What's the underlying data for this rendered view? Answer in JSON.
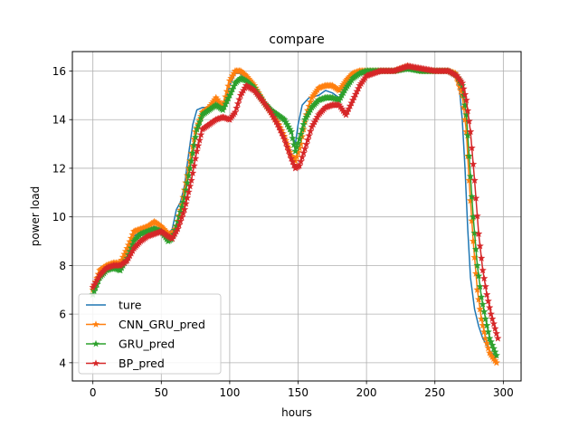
{
  "chart_data": {
    "type": "line",
    "title": "compare",
    "xlabel": "hours",
    "ylabel": "power load",
    "xlim": [
      -15,
      313
    ],
    "ylim": [
      3.25,
      16.8
    ],
    "xticks": [
      0,
      50,
      100,
      150,
      200,
      250,
      300
    ],
    "yticks": [
      4,
      6,
      8,
      10,
      12,
      14,
      16
    ],
    "grid": true,
    "legend_position": "lower-left",
    "series": [
      {
        "name": "ture",
        "color": "#1f77b4",
        "marker": "none",
        "points": [
          [
            0,
            6.9
          ],
          [
            5,
            7.5
          ],
          [
            10,
            7.9
          ],
          [
            15,
            8.0
          ],
          [
            20,
            8.0
          ],
          [
            25,
            8.6
          ],
          [
            30,
            9.2
          ],
          [
            35,
            9.4
          ],
          [
            40,
            9.5
          ],
          [
            45,
            9.6
          ],
          [
            50,
            9.5
          ],
          [
            55,
            9.3
          ],
          [
            58,
            9.5
          ],
          [
            61,
            10.3
          ],
          [
            64,
            10.6
          ],
          [
            67,
            11.3
          ],
          [
            70,
            12.6
          ],
          [
            73,
            13.8
          ],
          [
            76,
            14.4
          ],
          [
            80,
            14.5
          ],
          [
            85,
            14.5
          ],
          [
            90,
            14.8
          ],
          [
            95,
            14.4
          ],
          [
            100,
            15.4
          ],
          [
            104,
            15.9
          ],
          [
            108,
            15.9
          ],
          [
            112,
            15.6
          ],
          [
            118,
            15.2
          ],
          [
            125,
            14.6
          ],
          [
            130,
            14.3
          ],
          [
            135,
            14.2
          ],
          [
            140,
            13.9
          ],
          [
            145,
            13.5
          ],
          [
            148,
            13.0
          ],
          [
            150,
            13.8
          ],
          [
            153,
            14.6
          ],
          [
            158,
            14.9
          ],
          [
            165,
            15.0
          ],
          [
            170,
            15.2
          ],
          [
            175,
            15.1
          ],
          [
            180,
            14.9
          ],
          [
            185,
            15.5
          ],
          [
            190,
            15.9
          ],
          [
            195,
            16.0
          ],
          [
            200,
            16.0
          ],
          [
            210,
            16.0
          ],
          [
            220,
            16.0
          ],
          [
            230,
            16.1
          ],
          [
            240,
            16.0
          ],
          [
            250,
            16.0
          ],
          [
            260,
            16.0
          ],
          [
            265,
            15.8
          ],
          [
            268,
            15.2
          ],
          [
            270,
            14.0
          ],
          [
            272,
            12.0
          ],
          [
            274,
            9.5
          ],
          [
            276,
            7.5
          ],
          [
            279,
            6.2
          ],
          [
            282,
            5.5
          ],
          [
            285,
            5.0
          ],
          [
            290,
            4.5
          ],
          [
            295,
            4.2
          ]
        ]
      },
      {
        "name": "CNN_GRU_pred",
        "color": "#ff7f0e",
        "marker": "star",
        "points": [
          [
            0,
            7.0
          ],
          [
            5,
            7.8
          ],
          [
            10,
            8.0
          ],
          [
            15,
            8.1
          ],
          [
            20,
            8.1
          ],
          [
            25,
            8.7
          ],
          [
            30,
            9.4
          ],
          [
            35,
            9.5
          ],
          [
            40,
            9.6
          ],
          [
            45,
            9.8
          ],
          [
            50,
            9.6
          ],
          [
            55,
            9.3
          ],
          [
            58,
            9.3
          ],
          [
            61,
            9.6
          ],
          [
            65,
            10.5
          ],
          [
            70,
            12.0
          ],
          [
            75,
            13.5
          ],
          [
            80,
            14.3
          ],
          [
            85,
            14.5
          ],
          [
            90,
            14.9
          ],
          [
            95,
            14.5
          ],
          [
            100,
            15.6
          ],
          [
            104,
            16.0
          ],
          [
            108,
            16.0
          ],
          [
            112,
            15.8
          ],
          [
            118,
            15.4
          ],
          [
            125,
            14.7
          ],
          [
            130,
            14.3
          ],
          [
            135,
            13.9
          ],
          [
            140,
            13.3
          ],
          [
            145,
            12.5
          ],
          [
            148,
            12.3
          ],
          [
            152,
            13.0
          ],
          [
            156,
            14.2
          ],
          [
            160,
            14.9
          ],
          [
            165,
            15.3
          ],
          [
            170,
            15.4
          ],
          [
            175,
            15.4
          ],
          [
            180,
            15.2
          ],
          [
            185,
            15.6
          ],
          [
            190,
            15.9
          ],
          [
            195,
            16.0
          ],
          [
            200,
            16.0
          ],
          [
            210,
            16.0
          ],
          [
            220,
            16.0
          ],
          [
            230,
            16.2
          ],
          [
            240,
            16.0
          ],
          [
            250,
            16.0
          ],
          [
            260,
            16.0
          ],
          [
            265,
            15.9
          ],
          [
            270,
            15.0
          ],
          [
            273,
            13.5
          ],
          [
            275,
            11.5
          ],
          [
            278,
            9.0
          ],
          [
            281,
            7.0
          ],
          [
            284,
            5.8
          ],
          [
            287,
            5.0
          ],
          [
            290,
            4.4
          ],
          [
            295,
            4.0
          ]
        ]
      },
      {
        "name": "GRU_pred",
        "color": "#2ca02c",
        "marker": "star",
        "points": [
          [
            0,
            6.8
          ],
          [
            5,
            7.5
          ],
          [
            10,
            7.8
          ],
          [
            15,
            7.9
          ],
          [
            20,
            7.8
          ],
          [
            25,
            8.3
          ],
          [
            30,
            9.0
          ],
          [
            35,
            9.3
          ],
          [
            40,
            9.4
          ],
          [
            45,
            9.5
          ],
          [
            50,
            9.4
          ],
          [
            55,
            9.0
          ],
          [
            58,
            9.1
          ],
          [
            62,
            9.8
          ],
          [
            67,
            10.8
          ],
          [
            72,
            12.3
          ],
          [
            76,
            13.6
          ],
          [
            80,
            14.2
          ],
          [
            85,
            14.4
          ],
          [
            90,
            14.6
          ],
          [
            95,
            14.4
          ],
          [
            100,
            15.0
          ],
          [
            104,
            15.5
          ],
          [
            108,
            15.7
          ],
          [
            112,
            15.6
          ],
          [
            118,
            15.3
          ],
          [
            125,
            14.7
          ],
          [
            130,
            14.4
          ],
          [
            135,
            14.2
          ],
          [
            140,
            14.0
          ],
          [
            145,
            13.5
          ],
          [
            148,
            12.7
          ],
          [
            151,
            13.2
          ],
          [
            155,
            14.0
          ],
          [
            160,
            14.5
          ],
          [
            165,
            14.8
          ],
          [
            170,
            14.9
          ],
          [
            175,
            14.9
          ],
          [
            180,
            14.8
          ],
          [
            185,
            15.3
          ],
          [
            190,
            15.7
          ],
          [
            195,
            15.9
          ],
          [
            200,
            16.0
          ],
          [
            210,
            16.0
          ],
          [
            220,
            16.0
          ],
          [
            230,
            16.1
          ],
          [
            240,
            16.0
          ],
          [
            250,
            16.0
          ],
          [
            260,
            16.0
          ],
          [
            266,
            15.8
          ],
          [
            270,
            15.4
          ],
          [
            273,
            14.2
          ],
          [
            275,
            12.5
          ],
          [
            278,
            10.0
          ],
          [
            281,
            8.0
          ],
          [
            284,
            6.7
          ],
          [
            287,
            5.8
          ],
          [
            290,
            5.0
          ],
          [
            295,
            4.3
          ]
        ]
      },
      {
        "name": "BP_pred",
        "color": "#d62728",
        "marker": "star",
        "points": [
          [
            0,
            7.1
          ],
          [
            5,
            7.6
          ],
          [
            10,
            7.9
          ],
          [
            15,
            8.0
          ],
          [
            20,
            8.0
          ],
          [
            25,
            8.2
          ],
          [
            30,
            8.7
          ],
          [
            35,
            9.0
          ],
          [
            40,
            9.2
          ],
          [
            45,
            9.3
          ],
          [
            50,
            9.4
          ],
          [
            55,
            9.2
          ],
          [
            58,
            9.1
          ],
          [
            62,
            9.5
          ],
          [
            67,
            10.3
          ],
          [
            72,
            11.5
          ],
          [
            76,
            12.7
          ],
          [
            80,
            13.6
          ],
          [
            85,
            13.8
          ],
          [
            90,
            14.0
          ],
          [
            95,
            14.1
          ],
          [
            100,
            14.0
          ],
          [
            104,
            14.3
          ],
          [
            108,
            15.0
          ],
          [
            112,
            15.4
          ],
          [
            118,
            15.2
          ],
          [
            125,
            14.7
          ],
          [
            130,
            14.3
          ],
          [
            135,
            13.8
          ],
          [
            140,
            13.2
          ],
          [
            145,
            12.4
          ],
          [
            148,
            12.0
          ],
          [
            151,
            12.1
          ],
          [
            155,
            12.8
          ],
          [
            160,
            13.7
          ],
          [
            165,
            14.2
          ],
          [
            170,
            14.5
          ],
          [
            175,
            14.6
          ],
          [
            180,
            14.6
          ],
          [
            185,
            14.2
          ],
          [
            190,
            14.8
          ],
          [
            195,
            15.4
          ],
          [
            200,
            15.8
          ],
          [
            210,
            16.0
          ],
          [
            220,
            16.0
          ],
          [
            230,
            16.2
          ],
          [
            240,
            16.1
          ],
          [
            250,
            16.0
          ],
          [
            260,
            16.0
          ],
          [
            266,
            15.8
          ],
          [
            270,
            15.5
          ],
          [
            273,
            14.8
          ],
          [
            276,
            13.5
          ],
          [
            279,
            11.5
          ],
          [
            282,
            9.3
          ],
          [
            285,
            7.8
          ],
          [
            288,
            6.8
          ],
          [
            291,
            6.0
          ],
          [
            296,
            5.0
          ]
        ]
      }
    ]
  }
}
